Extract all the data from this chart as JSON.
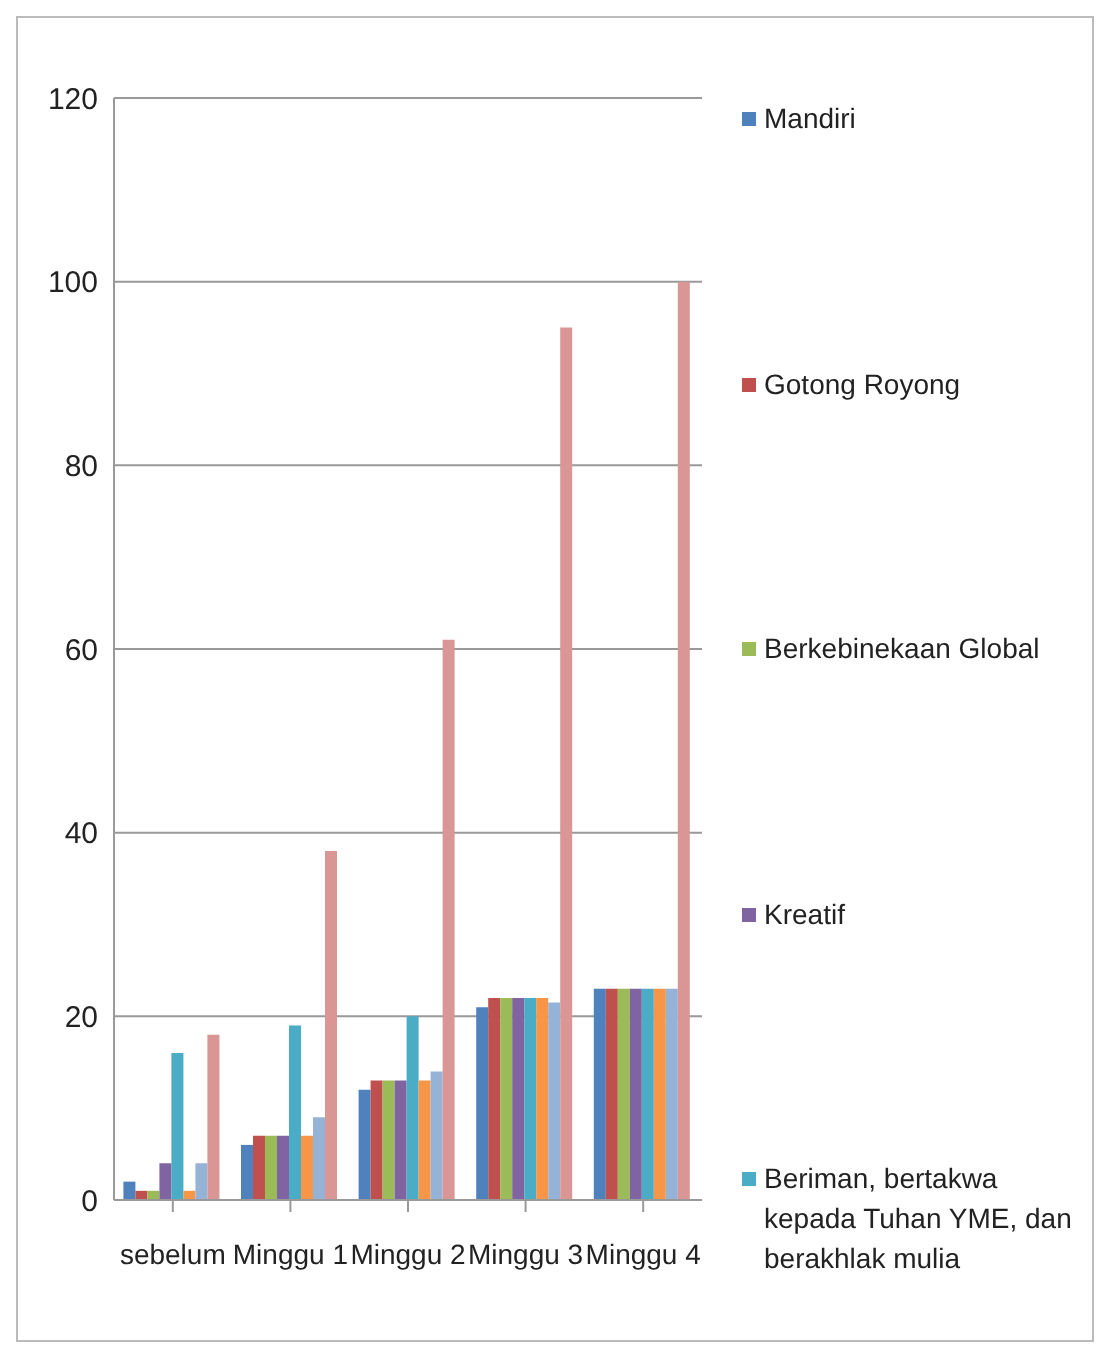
{
  "chart_data": {
    "type": "bar",
    "categories": [
      "sebelum",
      "Minggu 1",
      "Minggu 2",
      "Minggu 3",
      "Minggu 4"
    ],
    "series": [
      {
        "name": "Mandiri",
        "color": "#4f81bd",
        "values": [
          2,
          6,
          12,
          21,
          23
        ]
      },
      {
        "name": "Gotong Royong",
        "color": "#c0504d",
        "values": [
          1,
          7,
          13,
          22,
          23
        ]
      },
      {
        "name": "Berkebinekaan Global",
        "color": "#9bbb59",
        "values": [
          1,
          7,
          13,
          22,
          23
        ]
      },
      {
        "name": "Kreatif",
        "color": "#8064a2",
        "values": [
          4,
          7,
          13,
          22,
          23
        ]
      },
      {
        "name": "Beriman, bertakwa kepada Tuhan YME, dan berakhlak mulia",
        "color": "#4bacc6",
        "values": [
          16,
          19,
          20,
          22,
          23
        ]
      },
      {
        "color": "#f79646",
        "values": [
          1,
          7,
          13,
          22,
          23
        ]
      },
      {
        "color": "#95b3d7",
        "values": [
          4,
          9,
          14,
          21.5,
          23
        ]
      },
      {
        "color": "#d99694",
        "values": [
          18,
          38,
          61,
          95,
          100
        ]
      }
    ],
    "ylim": [
      0,
      120
    ],
    "yticks": [
      0,
      20,
      40,
      60,
      80,
      100,
      120
    ],
    "grid": "y",
    "legend": "right"
  }
}
